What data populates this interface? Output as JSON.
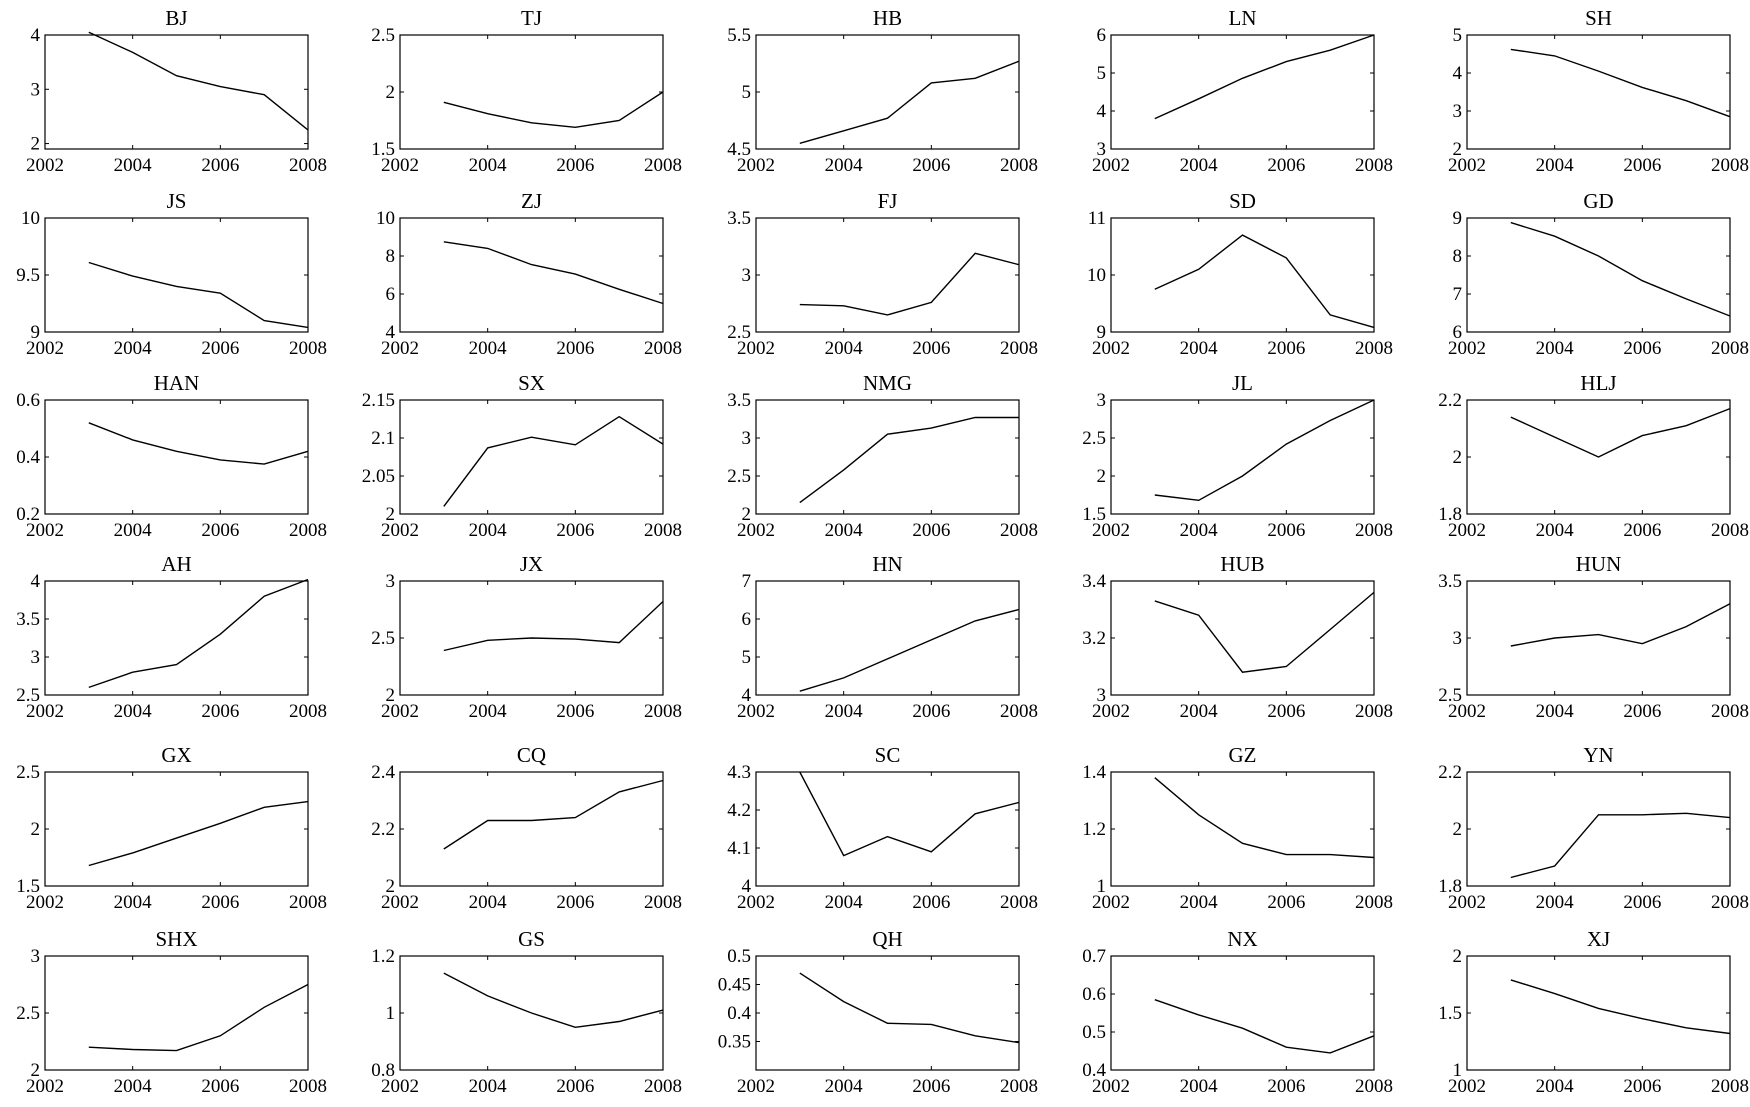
{
  "chart_data": [
    {
      "type": "line",
      "title": "BJ",
      "x": [
        2003,
        2004,
        2005,
        2006,
        2007,
        2008
      ],
      "values": [
        4.05,
        3.68,
        3.25,
        3.05,
        2.9,
        2.25
      ],
      "xlim": [
        2002,
        2008
      ],
      "ylim": [
        1.9,
        4
      ],
      "xticks": [
        2002,
        2004,
        2006,
        2008
      ],
      "yticks": [
        2,
        3,
        4
      ],
      "ytick_labels": [
        "2",
        "3",
        "4"
      ]
    },
    {
      "type": "line",
      "title": "TJ",
      "x": [
        2003,
        2004,
        2005,
        2006,
        2007,
        2008
      ],
      "values": [
        1.91,
        1.81,
        1.73,
        1.69,
        1.75,
        2.0
      ],
      "xlim": [
        2002,
        2008
      ],
      "ylim": [
        1.5,
        2.5
      ],
      "xticks": [
        2002,
        2004,
        2006,
        2008
      ],
      "yticks": [
        1.5,
        2,
        2.5
      ],
      "ytick_labels": [
        "1.5",
        "2",
        "2.5"
      ]
    },
    {
      "type": "line",
      "title": "HB",
      "x": [
        2003,
        2004,
        2005,
        2006,
        2007,
        2008
      ],
      "values": [
        4.55,
        4.66,
        4.77,
        5.08,
        5.12,
        5.27
      ],
      "xlim": [
        2002,
        2008
      ],
      "ylim": [
        4.5,
        5.5
      ],
      "xticks": [
        2002,
        2004,
        2006,
        2008
      ],
      "yticks": [
        4.5,
        5,
        5.5
      ],
      "ytick_labels": [
        "4.5",
        "5",
        "5.5"
      ]
    },
    {
      "type": "line",
      "title": "LN",
      "x": [
        2003,
        2004,
        2005,
        2006,
        2007,
        2008
      ],
      "values": [
        3.8,
        4.32,
        4.86,
        5.3,
        5.6,
        6.0
      ],
      "xlim": [
        2002,
        2008
      ],
      "ylim": [
        3,
        6
      ],
      "xticks": [
        2002,
        2004,
        2006,
        2008
      ],
      "yticks": [
        3,
        4,
        5,
        6
      ],
      "ytick_labels": [
        "3",
        "4",
        "5",
        "6"
      ]
    },
    {
      "type": "line",
      "title": "SH",
      "x": [
        2003,
        2004,
        2005,
        2006,
        2007,
        2008
      ],
      "values": [
        4.62,
        4.45,
        4.05,
        3.62,
        3.27,
        2.85
      ],
      "xlim": [
        2002,
        2008
      ],
      "ylim": [
        2,
        5
      ],
      "xticks": [
        2002,
        2004,
        2006,
        2008
      ],
      "yticks": [
        2,
        3,
        4,
        5
      ],
      "ytick_labels": [
        "2",
        "3",
        "4",
        "5"
      ]
    },
    {
      "type": "line",
      "title": "JS",
      "x": [
        2003,
        2004,
        2005,
        2006,
        2007,
        2008
      ],
      "values": [
        9.61,
        9.49,
        9.4,
        9.34,
        9.1,
        9.04
      ],
      "xlim": [
        2002,
        2008
      ],
      "ylim": [
        9,
        10
      ],
      "xticks": [
        2002,
        2004,
        2006,
        2008
      ],
      "yticks": [
        9,
        9.5,
        10
      ],
      "ytick_labels": [
        "9",
        "9.5",
        "10"
      ]
    },
    {
      "type": "line",
      "title": "ZJ",
      "x": [
        2003,
        2004,
        2005,
        2006,
        2007,
        2008
      ],
      "values": [
        8.75,
        8.4,
        7.55,
        7.05,
        6.25,
        5.5
      ],
      "xlim": [
        2002,
        2008
      ],
      "ylim": [
        4,
        10
      ],
      "xticks": [
        2002,
        2004,
        2006,
        2008
      ],
      "yticks": [
        4,
        6,
        8,
        10
      ],
      "ytick_labels": [
        "4",
        "6",
        "8",
        "10"
      ]
    },
    {
      "type": "line",
      "title": "FJ",
      "x": [
        2003,
        2004,
        2005,
        2006,
        2007,
        2008
      ],
      "values": [
        2.74,
        2.73,
        2.65,
        2.76,
        3.19,
        3.09
      ],
      "xlim": [
        2002,
        2008
      ],
      "ylim": [
        2.5,
        3.5
      ],
      "xticks": [
        2002,
        2004,
        2006,
        2008
      ],
      "yticks": [
        2.5,
        3,
        3.5
      ],
      "ytick_labels": [
        "2.5",
        "3",
        "3.5"
      ]
    },
    {
      "type": "line",
      "title": "SD",
      "x": [
        2003,
        2004,
        2005,
        2006,
        2007,
        2008
      ],
      "values": [
        9.75,
        10.1,
        10.7,
        10.3,
        9.3,
        9.08
      ],
      "xlim": [
        2002,
        2008
      ],
      "ylim": [
        9,
        11
      ],
      "xticks": [
        2002,
        2004,
        2006,
        2008
      ],
      "yticks": [
        9,
        10,
        11
      ],
      "ytick_labels": [
        "9",
        "10",
        "11"
      ]
    },
    {
      "type": "line",
      "title": "GD",
      "x": [
        2003,
        2004,
        2005,
        2006,
        2007,
        2008
      ],
      "values": [
        8.88,
        8.52,
        8.0,
        7.35,
        6.87,
        6.42
      ],
      "xlim": [
        2002,
        2008
      ],
      "ylim": [
        6,
        9
      ],
      "xticks": [
        2002,
        2004,
        2006,
        2008
      ],
      "yticks": [
        6,
        7,
        8,
        9
      ],
      "ytick_labels": [
        "6",
        "7",
        "8",
        "9"
      ]
    },
    {
      "type": "line",
      "title": "HAN",
      "x": [
        2003,
        2004,
        2005,
        2006,
        2007,
        2008
      ],
      "values": [
        0.52,
        0.46,
        0.42,
        0.39,
        0.375,
        0.42
      ],
      "xlim": [
        2002,
        2008
      ],
      "ylim": [
        0.2,
        0.6
      ],
      "xticks": [
        2002,
        2004,
        2006,
        2008
      ],
      "yticks": [
        0.2,
        0.4,
        0.6
      ],
      "ytick_labels": [
        "0.2",
        "0.4",
        "0.6"
      ]
    },
    {
      "type": "line",
      "title": "SX",
      "x": [
        2003,
        2004,
        2005,
        2006,
        2007,
        2008
      ],
      "values": [
        2.01,
        2.087,
        2.101,
        2.091,
        2.128,
        2.092
      ],
      "xlim": [
        2002,
        2008
      ],
      "ylim": [
        2,
        2.15
      ],
      "xticks": [
        2002,
        2004,
        2006,
        2008
      ],
      "yticks": [
        2,
        2.05,
        2.1,
        2.15
      ],
      "ytick_labels": [
        "2",
        "2.05",
        "2.1",
        "2.15"
      ]
    },
    {
      "type": "line",
      "title": "NMG",
      "x": [
        2003,
        2004,
        2005,
        2006,
        2007,
        2008
      ],
      "values": [
        2.15,
        2.58,
        3.05,
        3.13,
        3.27,
        3.27
      ],
      "xlim": [
        2002,
        2008
      ],
      "ylim": [
        2,
        3.5
      ],
      "xticks": [
        2002,
        2004,
        2006,
        2008
      ],
      "yticks": [
        2,
        2.5,
        3,
        3.5
      ],
      "ytick_labels": [
        "2",
        "2.5",
        "3",
        "3.5"
      ]
    },
    {
      "type": "line",
      "title": "JL",
      "x": [
        2003,
        2004,
        2005,
        2006,
        2007,
        2008
      ],
      "values": [
        1.75,
        1.68,
        2.0,
        2.42,
        2.73,
        3.0
      ],
      "xlim": [
        2002,
        2008
      ],
      "ylim": [
        1.5,
        3
      ],
      "xticks": [
        2002,
        2004,
        2006,
        2008
      ],
      "yticks": [
        1.5,
        2,
        2.5,
        3
      ],
      "ytick_labels": [
        "1.5",
        "2",
        "2.5",
        "3"
      ]
    },
    {
      "type": "line",
      "title": "HLJ",
      "x": [
        2003,
        2004,
        2005,
        2006,
        2007,
        2008
      ],
      "values": [
        2.14,
        2.07,
        2.0,
        2.075,
        2.11,
        2.17
      ],
      "xlim": [
        2002,
        2008
      ],
      "ylim": [
        1.8,
        2.2
      ],
      "xticks": [
        2002,
        2004,
        2006,
        2008
      ],
      "yticks": [
        1.8,
        2,
        2.2
      ],
      "ytick_labels": [
        "1.8",
        "2",
        "2.2"
      ]
    },
    {
      "type": "line",
      "title": "AH",
      "x": [
        2003,
        2004,
        2005,
        2006,
        2007,
        2008
      ],
      "values": [
        2.6,
        2.8,
        2.9,
        3.3,
        3.8,
        4.02
      ],
      "xlim": [
        2002,
        2008
      ],
      "ylim": [
        2.5,
        4
      ],
      "xticks": [
        2002,
        2004,
        2006,
        2008
      ],
      "yticks": [
        2.5,
        3,
        3.5,
        4
      ],
      "ytick_labels": [
        "2.5",
        "3",
        "3.5",
        "4"
      ]
    },
    {
      "type": "line",
      "title": "JX",
      "x": [
        2003,
        2004,
        2005,
        2006,
        2007,
        2008
      ],
      "values": [
        2.39,
        2.48,
        2.5,
        2.49,
        2.46,
        2.82
      ],
      "xlim": [
        2002,
        2008
      ],
      "ylim": [
        2,
        3
      ],
      "xticks": [
        2002,
        2004,
        2006,
        2008
      ],
      "yticks": [
        2,
        2.5,
        3
      ],
      "ytick_labels": [
        "2",
        "2.5",
        "3"
      ]
    },
    {
      "type": "line",
      "title": "HN",
      "x": [
        2003,
        2004,
        2005,
        2006,
        2007,
        2008
      ],
      "values": [
        4.1,
        4.45,
        4.95,
        5.45,
        5.95,
        6.25
      ],
      "xlim": [
        2002,
        2008
      ],
      "ylim": [
        4,
        7
      ],
      "xticks": [
        2002,
        2004,
        2006,
        2008
      ],
      "yticks": [
        4,
        5,
        6,
        7
      ],
      "ytick_labels": [
        "4",
        "5",
        "6",
        "7"
      ]
    },
    {
      "type": "line",
      "title": "HUB",
      "x": [
        2003,
        2004,
        2005,
        2006,
        2007,
        2008
      ],
      "values": [
        3.33,
        3.28,
        3.08,
        3.1,
        3.23,
        3.36
      ],
      "xlim": [
        2002,
        2008
      ],
      "ylim": [
        3,
        3.4
      ],
      "xticks": [
        2002,
        2004,
        2006,
        2008
      ],
      "yticks": [
        3,
        3.2,
        3.4
      ],
      "ytick_labels": [
        "3",
        "3.2",
        "3.4"
      ]
    },
    {
      "type": "line",
      "title": "HUN",
      "x": [
        2003,
        2004,
        2005,
        2006,
        2007,
        2008
      ],
      "values": [
        2.93,
        3.0,
        3.03,
        2.95,
        3.1,
        3.3
      ],
      "xlim": [
        2002,
        2008
      ],
      "ylim": [
        2.5,
        3.5
      ],
      "xticks": [
        2002,
        2004,
        2006,
        2008
      ],
      "yticks": [
        2.5,
        3,
        3.5
      ],
      "ytick_labels": [
        "2.5",
        "3",
        "3.5"
      ]
    },
    {
      "type": "line",
      "title": "GX",
      "x": [
        2003,
        2004,
        2005,
        2006,
        2007,
        2008
      ],
      "values": [
        1.68,
        1.79,
        1.92,
        2.05,
        2.19,
        2.24
      ],
      "xlim": [
        2002,
        2008
      ],
      "ylim": [
        1.5,
        2.5
      ],
      "xticks": [
        2002,
        2004,
        2006,
        2008
      ],
      "yticks": [
        1.5,
        2,
        2.5
      ],
      "ytick_labels": [
        "1.5",
        "2",
        "2.5"
      ]
    },
    {
      "type": "line",
      "title": "CQ",
      "x": [
        2003,
        2004,
        2005,
        2006,
        2007,
        2008
      ],
      "values": [
        2.13,
        2.23,
        2.23,
        2.24,
        2.33,
        2.37
      ],
      "xlim": [
        2002,
        2008
      ],
      "ylim": [
        2,
        2.4
      ],
      "xticks": [
        2002,
        2004,
        2006,
        2008
      ],
      "yticks": [
        2,
        2.2,
        2.4
      ],
      "ytick_labels": [
        "2",
        "2.2",
        "2.4"
      ]
    },
    {
      "type": "line",
      "title": "SC",
      "x": [
        2003,
        2004,
        2005,
        2006,
        2007,
        2008
      ],
      "values": [
        4.3,
        4.08,
        4.13,
        4.09,
        4.19,
        4.22
      ],
      "xlim": [
        2002,
        2008
      ],
      "ylim": [
        4,
        4.3
      ],
      "xticks": [
        2002,
        2004,
        2006,
        2008
      ],
      "yticks": [
        4,
        4.1,
        4.2,
        4.3
      ],
      "ytick_labels": [
        "4",
        "4.1",
        "4.2",
        "4.3"
      ]
    },
    {
      "type": "line",
      "title": "GZ",
      "x": [
        2003,
        2004,
        2005,
        2006,
        2007,
        2008
      ],
      "values": [
        1.38,
        1.25,
        1.15,
        1.11,
        1.11,
        1.1
      ],
      "xlim": [
        2002,
        2008
      ],
      "ylim": [
        1,
        1.4
      ],
      "xticks": [
        2002,
        2004,
        2006,
        2008
      ],
      "yticks": [
        1,
        1.2,
        1.4
      ],
      "ytick_labels": [
        "1",
        "1.2",
        "1.4"
      ]
    },
    {
      "type": "line",
      "title": "YN",
      "x": [
        2003,
        2004,
        2005,
        2006,
        2007,
        2008
      ],
      "values": [
        1.83,
        1.87,
        2.05,
        2.05,
        2.055,
        2.04
      ],
      "xlim": [
        2002,
        2008
      ],
      "ylim": [
        1.8,
        2.2
      ],
      "xticks": [
        2002,
        2004,
        2006,
        2008
      ],
      "yticks": [
        1.8,
        2,
        2.2
      ],
      "ytick_labels": [
        "1.8",
        "2",
        "2.2"
      ]
    },
    {
      "type": "line",
      "title": "SHX",
      "x": [
        2003,
        2004,
        2005,
        2006,
        2007,
        2008
      ],
      "values": [
        2.2,
        2.18,
        2.17,
        2.3,
        2.55,
        2.75
      ],
      "xlim": [
        2002,
        2008
      ],
      "ylim": [
        2,
        3
      ],
      "xticks": [
        2002,
        2004,
        2006,
        2008
      ],
      "yticks": [
        2,
        2.5,
        3
      ],
      "ytick_labels": [
        "2",
        "2.5",
        "3"
      ]
    },
    {
      "type": "line",
      "title": "GS",
      "x": [
        2003,
        2004,
        2005,
        2006,
        2007,
        2008
      ],
      "values": [
        1.14,
        1.06,
        1.0,
        0.95,
        0.97,
        1.01
      ],
      "xlim": [
        2002,
        2008
      ],
      "ylim": [
        0.8,
        1.2
      ],
      "xticks": [
        2002,
        2004,
        2006,
        2008
      ],
      "yticks": [
        0.8,
        1,
        1.2
      ],
      "ytick_labels": [
        "0.8",
        "1",
        "1.2"
      ]
    },
    {
      "type": "line",
      "title": "QH",
      "x": [
        2003,
        2004,
        2005,
        2006,
        2007,
        2008
      ],
      "values": [
        0.47,
        0.42,
        0.382,
        0.38,
        0.36,
        0.348
      ],
      "xlim": [
        2002,
        2008
      ],
      "ylim": [
        0.3,
        0.5
      ],
      "xticks": [
        2002,
        2004,
        2006,
        2008
      ],
      "yticks": [
        0.35,
        0.4,
        0.45,
        0.5
      ],
      "ytick_labels": [
        "0.35",
        "0.4",
        "0.45",
        "0.5"
      ]
    },
    {
      "type": "line",
      "title": "NX",
      "x": [
        2003,
        2004,
        2005,
        2006,
        2007,
        2008
      ],
      "values": [
        0.585,
        0.545,
        0.51,
        0.46,
        0.445,
        0.49
      ],
      "xlim": [
        2002,
        2008
      ],
      "ylim": [
        0.4,
        0.7
      ],
      "xticks": [
        2002,
        2004,
        2006,
        2008
      ],
      "yticks": [
        0.4,
        0.5,
        0.6,
        0.7
      ],
      "ytick_labels": [
        "0.4",
        "0.5",
        "0.6",
        "0.7"
      ]
    },
    {
      "type": "line",
      "title": "XJ",
      "x": [
        2003,
        2004,
        2005,
        2006,
        2007,
        2008
      ],
      "values": [
        1.79,
        1.67,
        1.54,
        1.45,
        1.37,
        1.32
      ],
      "xlim": [
        2002,
        2008
      ],
      "ylim": [
        1,
        2
      ],
      "xticks": [
        2002,
        2004,
        2006,
        2008
      ],
      "yticks": [
        1,
        1.5,
        2
      ],
      "ytick_labels": [
        "1",
        "1.5",
        "2"
      ]
    }
  ]
}
